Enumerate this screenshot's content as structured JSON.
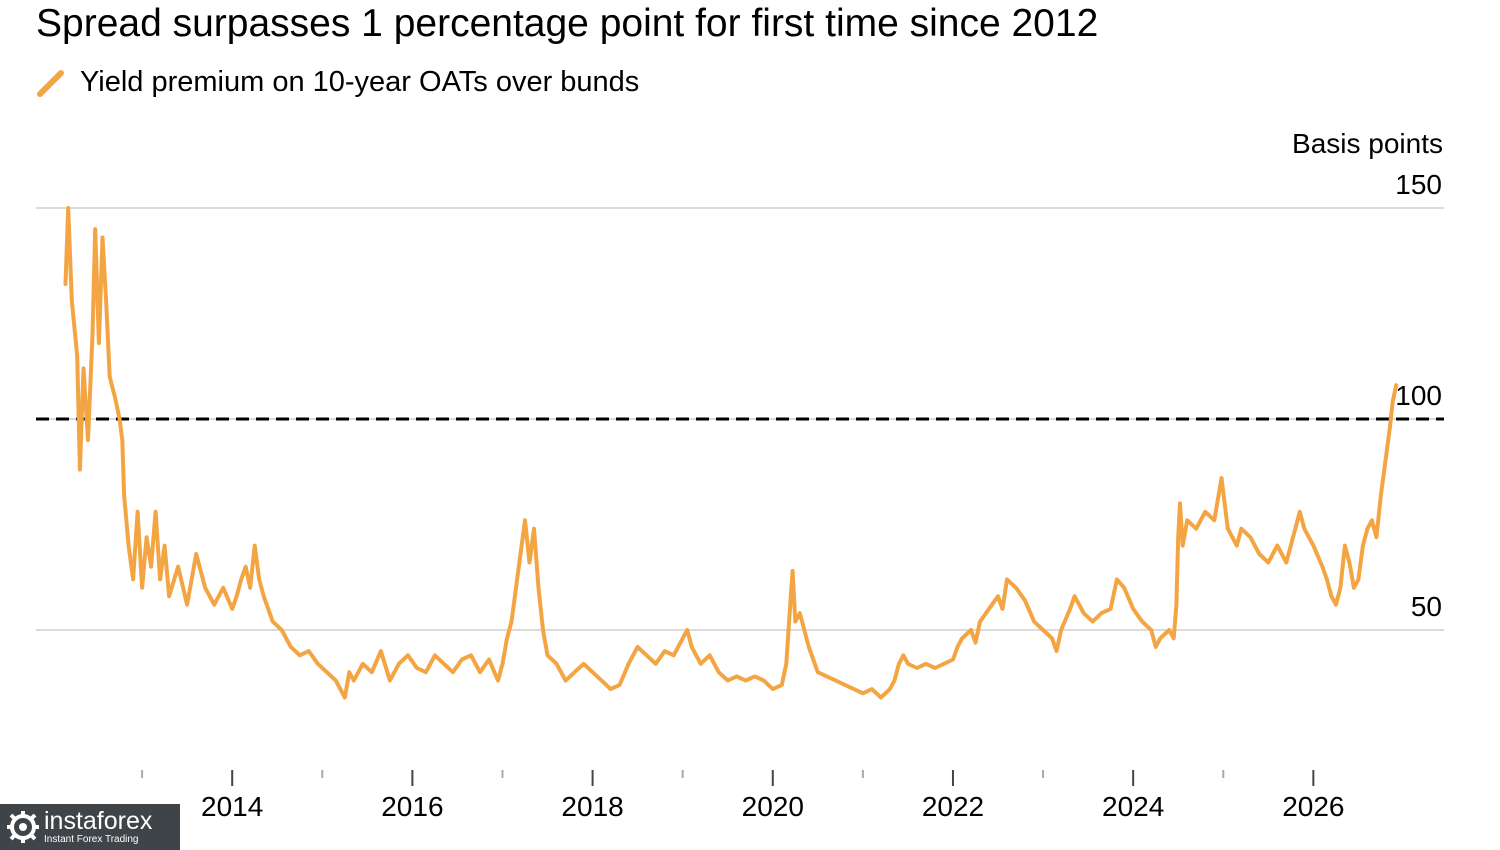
{
  "title": "Spread surpasses 1 percentage point for first time since 2012",
  "watermark": {
    "brand": "instaforex",
    "tagline": "Instant Forex Trading"
  },
  "chart_data": {
    "type": "line",
    "title": "Spread surpasses 1 percentage point for first time since 2012",
    "ylabel": "Basis points",
    "xlabel": "",
    "ylim": [
      32,
      155
    ],
    "xlim": [
      2012.0,
      2027.45
    ],
    "yticks": [
      50,
      100,
      150
    ],
    "xticks": [
      2014,
      2016,
      2018,
      2020,
      2022,
      2024,
      2026
    ],
    "x_minor_ticks": [
      2013,
      2015,
      2017,
      2019,
      2021,
      2023,
      2025
    ],
    "grid": true,
    "legend_position": "top-left",
    "reference_line": {
      "y": 100,
      "style": "dashed",
      "color": "#000000"
    },
    "series": [
      {
        "name": "Yield premium on 10-year OATs over bunds",
        "color": "#f4a543",
        "points": [
          [
            2012.15,
            132
          ],
          [
            2012.18,
            150
          ],
          [
            2012.22,
            128
          ],
          [
            2012.28,
            115
          ],
          [
            2012.31,
            88
          ],
          [
            2012.35,
            112
          ],
          [
            2012.4,
            95
          ],
          [
            2012.45,
            120
          ],
          [
            2012.48,
            145
          ],
          [
            2012.52,
            118
          ],
          [
            2012.56,
            143
          ],
          [
            2012.6,
            128
          ],
          [
            2012.64,
            110
          ],
          [
            2012.7,
            105
          ],
          [
            2012.75,
            100
          ],
          [
            2012.78,
            95
          ],
          [
            2012.8,
            82
          ],
          [
            2012.85,
            70
          ],
          [
            2012.9,
            62
          ],
          [
            2012.95,
            78
          ],
          [
            2013.0,
            60
          ],
          [
            2013.05,
            72
          ],
          [
            2013.1,
            65
          ],
          [
            2013.15,
            78
          ],
          [
            2013.2,
            62
          ],
          [
            2013.25,
            70
          ],
          [
            2013.3,
            58
          ],
          [
            2013.4,
            65
          ],
          [
            2013.5,
            56
          ],
          [
            2013.6,
            68
          ],
          [
            2013.7,
            60
          ],
          [
            2013.8,
            56
          ],
          [
            2013.9,
            60
          ],
          [
            2014.0,
            55
          ],
          [
            2014.05,
            58
          ],
          [
            2014.1,
            62
          ],
          [
            2014.15,
            65
          ],
          [
            2014.2,
            60
          ],
          [
            2014.25,
            70
          ],
          [
            2014.3,
            62
          ],
          [
            2014.35,
            58
          ],
          [
            2014.45,
            52
          ],
          [
            2014.55,
            50
          ],
          [
            2014.65,
            46
          ],
          [
            2014.75,
            44
          ],
          [
            2014.85,
            45
          ],
          [
            2014.95,
            42
          ],
          [
            2015.05,
            40
          ],
          [
            2015.15,
            38
          ],
          [
            2015.25,
            34
          ],
          [
            2015.3,
            40
          ],
          [
            2015.35,
            38
          ],
          [
            2015.45,
            42
          ],
          [
            2015.55,
            40
          ],
          [
            2015.65,
            45
          ],
          [
            2015.75,
            38
          ],
          [
            2015.85,
            42
          ],
          [
            2015.95,
            44
          ],
          [
            2016.05,
            41
          ],
          [
            2016.15,
            40
          ],
          [
            2016.25,
            44
          ],
          [
            2016.35,
            42
          ],
          [
            2016.45,
            40
          ],
          [
            2016.55,
            43
          ],
          [
            2016.65,
            44
          ],
          [
            2016.75,
            40
          ],
          [
            2016.85,
            43
          ],
          [
            2016.95,
            38
          ],
          [
            2017.0,
            42
          ],
          [
            2017.05,
            48
          ],
          [
            2017.1,
            52
          ],
          [
            2017.15,
            60
          ],
          [
            2017.2,
            68
          ],
          [
            2017.25,
            76
          ],
          [
            2017.3,
            66
          ],
          [
            2017.35,
            74
          ],
          [
            2017.4,
            60
          ],
          [
            2017.45,
            50
          ],
          [
            2017.5,
            44
          ],
          [
            2017.6,
            42
          ],
          [
            2017.7,
            38
          ],
          [
            2017.8,
            40
          ],
          [
            2017.9,
            42
          ],
          [
            2018.0,
            40
          ],
          [
            2018.1,
            38
          ],
          [
            2018.2,
            36
          ],
          [
            2018.3,
            37
          ],
          [
            2018.4,
            42
          ],
          [
            2018.5,
            46
          ],
          [
            2018.6,
            44
          ],
          [
            2018.7,
            42
          ],
          [
            2018.8,
            45
          ],
          [
            2018.9,
            44
          ],
          [
            2019.0,
            48
          ],
          [
            2019.05,
            50
          ],
          [
            2019.1,
            46
          ],
          [
            2019.2,
            42
          ],
          [
            2019.3,
            44
          ],
          [
            2019.4,
            40
          ],
          [
            2019.5,
            38
          ],
          [
            2019.6,
            39
          ],
          [
            2019.7,
            38
          ],
          [
            2019.8,
            39
          ],
          [
            2019.9,
            38
          ],
          [
            2020.0,
            36
          ],
          [
            2020.1,
            37
          ],
          [
            2020.15,
            42
          ],
          [
            2020.2,
            58
          ],
          [
            2020.22,
            64
          ],
          [
            2020.25,
            52
          ],
          [
            2020.3,
            54
          ],
          [
            2020.35,
            50
          ],
          [
            2020.4,
            46
          ],
          [
            2020.5,
            40
          ],
          [
            2020.6,
            39
          ],
          [
            2020.7,
            38
          ],
          [
            2020.8,
            37
          ],
          [
            2020.9,
            36
          ],
          [
            2021.0,
            35
          ],
          [
            2021.1,
            36
          ],
          [
            2021.2,
            34
          ],
          [
            2021.3,
            36
          ],
          [
            2021.35,
            38
          ],
          [
            2021.4,
            42
          ],
          [
            2021.45,
            44
          ],
          [
            2021.5,
            42
          ],
          [
            2021.6,
            41
          ],
          [
            2021.7,
            42
          ],
          [
            2021.8,
            41
          ],
          [
            2021.9,
            42
          ],
          [
            2022.0,
            43
          ],
          [
            2022.05,
            46
          ],
          [
            2022.1,
            48
          ],
          [
            2022.2,
            50
          ],
          [
            2022.25,
            47
          ],
          [
            2022.3,
            52
          ],
          [
            2022.4,
            55
          ],
          [
            2022.5,
            58
          ],
          [
            2022.55,
            55
          ],
          [
            2022.6,
            62
          ],
          [
            2022.7,
            60
          ],
          [
            2022.8,
            57
          ],
          [
            2022.9,
            52
          ],
          [
            2023.0,
            50
          ],
          [
            2023.1,
            48
          ],
          [
            2023.15,
            45
          ],
          [
            2023.2,
            50
          ],
          [
            2023.3,
            55
          ],
          [
            2023.35,
            58
          ],
          [
            2023.45,
            54
          ],
          [
            2023.55,
            52
          ],
          [
            2023.65,
            54
          ],
          [
            2023.75,
            55
          ],
          [
            2023.82,
            62
          ],
          [
            2023.9,
            60
          ],
          [
            2024.0,
            55
          ],
          [
            2024.1,
            52
          ],
          [
            2024.2,
            50
          ],
          [
            2024.25,
            46
          ],
          [
            2024.3,
            48
          ],
          [
            2024.4,
            50
          ],
          [
            2024.45,
            48
          ],
          [
            2024.48,
            56
          ],
          [
            2024.5,
            72
          ],
          [
            2024.52,
            80
          ],
          [
            2024.55,
            70
          ],
          [
            2024.6,
            76
          ],
          [
            2024.7,
            74
          ],
          [
            2024.8,
            78
          ],
          [
            2024.9,
            76
          ],
          [
            2024.98,
            86
          ],
          [
            2025.05,
            74
          ],
          [
            2025.15,
            70
          ],
          [
            2025.2,
            74
          ],
          [
            2025.3,
            72
          ],
          [
            2025.4,
            68
          ],
          [
            2025.5,
            66
          ],
          [
            2025.6,
            70
          ],
          [
            2025.7,
            66
          ],
          [
            2025.8,
            74
          ],
          [
            2025.85,
            78
          ],
          [
            2025.9,
            74
          ],
          [
            2026.0,
            70
          ],
          [
            2026.1,
            65
          ],
          [
            2026.15,
            62
          ],
          [
            2026.2,
            58
          ],
          [
            2026.25,
            56
          ],
          [
            2026.3,
            60
          ],
          [
            2026.35,
            70
          ],
          [
            2026.4,
            66
          ],
          [
            2026.45,
            60
          ],
          [
            2026.5,
            62
          ],
          [
            2026.55,
            70
          ],
          [
            2026.6,
            74
          ],
          [
            2026.65,
            76
          ],
          [
            2026.7,
            72
          ],
          [
            2026.75,
            82
          ],
          [
            2026.8,
            90
          ],
          [
            2026.85,
            98
          ],
          [
            2026.88,
            104
          ],
          [
            2026.92,
            108
          ]
        ]
      }
    ]
  }
}
